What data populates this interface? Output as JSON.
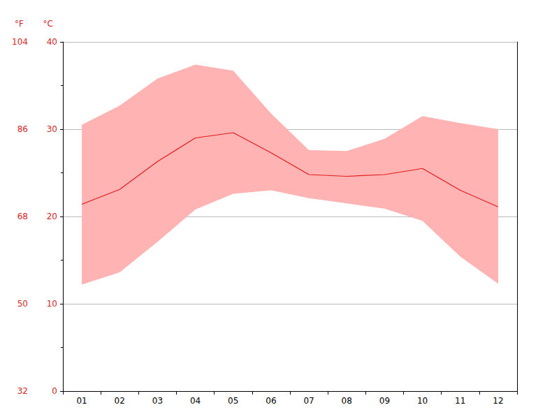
{
  "chart_data": {
    "type": "line",
    "categories": [
      "01",
      "02",
      "03",
      "04",
      "05",
      "06",
      "07",
      "08",
      "09",
      "10",
      "11",
      "12"
    ],
    "values": [
      21.4,
      23.1,
      26.3,
      29.0,
      29.6,
      27.3,
      24.8,
      24.6,
      24.8,
      25.5,
      23.0,
      21.1
    ],
    "color": "#e31a1c",
    "band": {
      "low": [
        12.2,
        13.6,
        17.1,
        20.8,
        22.6,
        23.0,
        22.1,
        21.5,
        20.9,
        19.5,
        15.4,
        12.3
      ],
      "high": [
        30.5,
        32.7,
        35.8,
        37.4,
        36.7,
        31.8,
        27.6,
        27.5,
        28.9,
        31.5,
        30.7,
        30.0
      ],
      "color": "#ffb3b3"
    },
    "ylabel": "°C",
    "ylim": [
      0,
      40
    ],
    "yticks": [
      0,
      10,
      20,
      30,
      40
    ],
    "y2label": "°F",
    "y2lim": [
      32,
      104
    ],
    "y2ticks": [
      32,
      50,
      68,
      86,
      104
    ],
    "grid": true
  }
}
